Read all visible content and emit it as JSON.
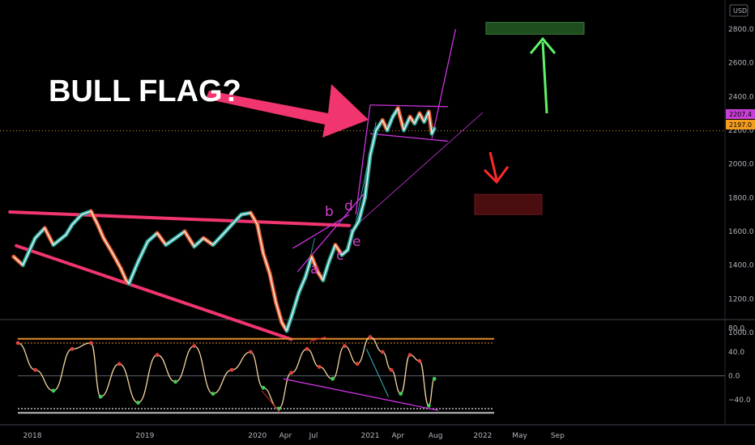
{
  "chart_data": {
    "type": "line",
    "currency_label": "USD",
    "annotation_title": "BULL FLAG?",
    "price": {
      "ylim": [
        950,
        2900
      ],
      "y_ticks": [
        "1000.0",
        "1200.0",
        "1400.0",
        "1600.0",
        "1800.0",
        "2000.0",
        "2200.0",
        "2400.0",
        "2600.0",
        "2800.0"
      ],
      "y_tick_values": [
        1000,
        1200,
        1400,
        1600,
        1800,
        2000,
        2200,
        2400,
        2600,
        2800
      ],
      "x": [
        "2017-11-01",
        "2017-12-01",
        "2018-01-10",
        "2018-02-10",
        "2018-03-10",
        "2018-04-20",
        "2018-05-10",
        "2018-06-10",
        "2018-07-10",
        "2018-08-01",
        "2018-08-20",
        "2018-09-15",
        "2018-10-15",
        "2018-11-01",
        "2018-11-10",
        "2018-12-10",
        "2019-01-10",
        "2019-02-10",
        "2019-03-10",
        "2019-04-10",
        "2019-05-10",
        "2019-06-10",
        "2019-07-10",
        "2019-08-10",
        "2019-09-10",
        "2019-10-10",
        "2019-11-10",
        "2019-12-10",
        "2020-01-01",
        "2020-01-20",
        "2020-02-10",
        "2020-03-01",
        "2020-03-20",
        "2020-04-05",
        "2020-04-25",
        "2020-05-15",
        "2020-06-05",
        "2020-06-25",
        "2020-07-15",
        "2020-08-01",
        "2020-08-20",
        "2020-09-10",
        "2020-10-01",
        "2020-10-20",
        "2020-11-05",
        "2020-11-25",
        "2020-12-15",
        "2021-01-01",
        "2021-01-20",
        "2021-02-10",
        "2021-02-25",
        "2021-03-15",
        "2021-04-01",
        "2021-04-20",
        "2021-05-10",
        "2021-05-25",
        "2021-06-10",
        "2021-06-25",
        "2021-07-10",
        "2021-07-20",
        "2021-07-28"
      ],
      "y": [
        1450,
        1400,
        1560,
        1620,
        1520,
        1580,
        1640,
        1700,
        1720,
        1640,
        1560,
        1480,
        1380,
        1310,
        1290,
        1420,
        1540,
        1590,
        1520,
        1560,
        1600,
        1510,
        1560,
        1520,
        1580,
        1640,
        1700,
        1710,
        1640,
        1470,
        1350,
        1180,
        1060,
        1010,
        1120,
        1240,
        1330,
        1450,
        1360,
        1310,
        1420,
        1520,
        1460,
        1490,
        1600,
        1660,
        1800,
        2050,
        2200,
        2260,
        2200,
        2280,
        2330,
        2200,
        2280,
        2240,
        2300,
        2250,
        2310,
        2180,
        2210
      ],
      "last_price_label": "2207.4",
      "secondary_price_label": "2197.0",
      "wave_labels": [
        "a",
        "b",
        "c",
        "d",
        "e"
      ],
      "target_up_zone": [
        2770,
        2840
      ],
      "target_down_zone": [
        1700,
        1820
      ]
    },
    "oscillator": {
      "ylim": [
        -65,
        90
      ],
      "y_ticks": [
        "80.0",
        "40.0",
        "0.0",
        "−40.0"
      ],
      "y_tick_values": [
        80,
        40,
        0,
        -40
      ],
      "x": [
        "2017-11-15",
        "2018-01-10",
        "2018-03-10",
        "2018-05-10",
        "2018-07-10",
        "2018-08-10",
        "2018-10-10",
        "2018-12-10",
        "2019-02-10",
        "2019-04-10",
        "2019-06-10",
        "2019-08-10",
        "2019-10-10",
        "2019-12-10",
        "2020-01-20",
        "2020-03-10",
        "2020-04-20",
        "2020-06-10",
        "2020-07-20",
        "2020-09-01",
        "2020-10-10",
        "2020-11-20",
        "2021-01-01",
        "2021-02-10",
        "2021-03-10",
        "2021-04-10",
        "2021-05-10",
        "2021-06-10",
        "2021-07-10",
        "2021-07-28"
      ],
      "y": [
        55,
        10,
        -25,
        45,
        55,
        -35,
        20,
        -45,
        35,
        -10,
        50,
        -30,
        10,
        40,
        -20,
        -55,
        5,
        45,
        15,
        -5,
        50,
        20,
        65,
        40,
        10,
        -30,
        35,
        25,
        -50,
        -5
      ]
    },
    "x_tick_labels": [
      "2018",
      "2019",
      "2020",
      "Apr",
      "Jul",
      "2021",
      "Apr",
      "Aug",
      "2022",
      "May",
      "Sep"
    ],
    "x_tick_dates": [
      "2018-01-01",
      "2019-01-01",
      "2020-01-01",
      "2020-04-01",
      "2020-07-01",
      "2021-01-01",
      "2021-04-01",
      "2021-08-01",
      "2022-01-01",
      "2022-05-01",
      "2022-09-01"
    ],
    "colors": {
      "price_line": "#f5f5f5",
      "up_candle": "#26a69a",
      "down_candle": "#e65b2a",
      "trendline": "#f0356f",
      "flag_channel": "#cc33e0",
      "target_up_arrow": "#5ff26a",
      "target_down_arrow": "#ff2a2a",
      "target_up_zone": "#1e4d1e",
      "target_down_zone": "#4a0d10",
      "osc_line": "#f5d6a0",
      "osc_upper_band": "#e08a2c",
      "osc_lower_band": "#bdbdbd"
    }
  }
}
